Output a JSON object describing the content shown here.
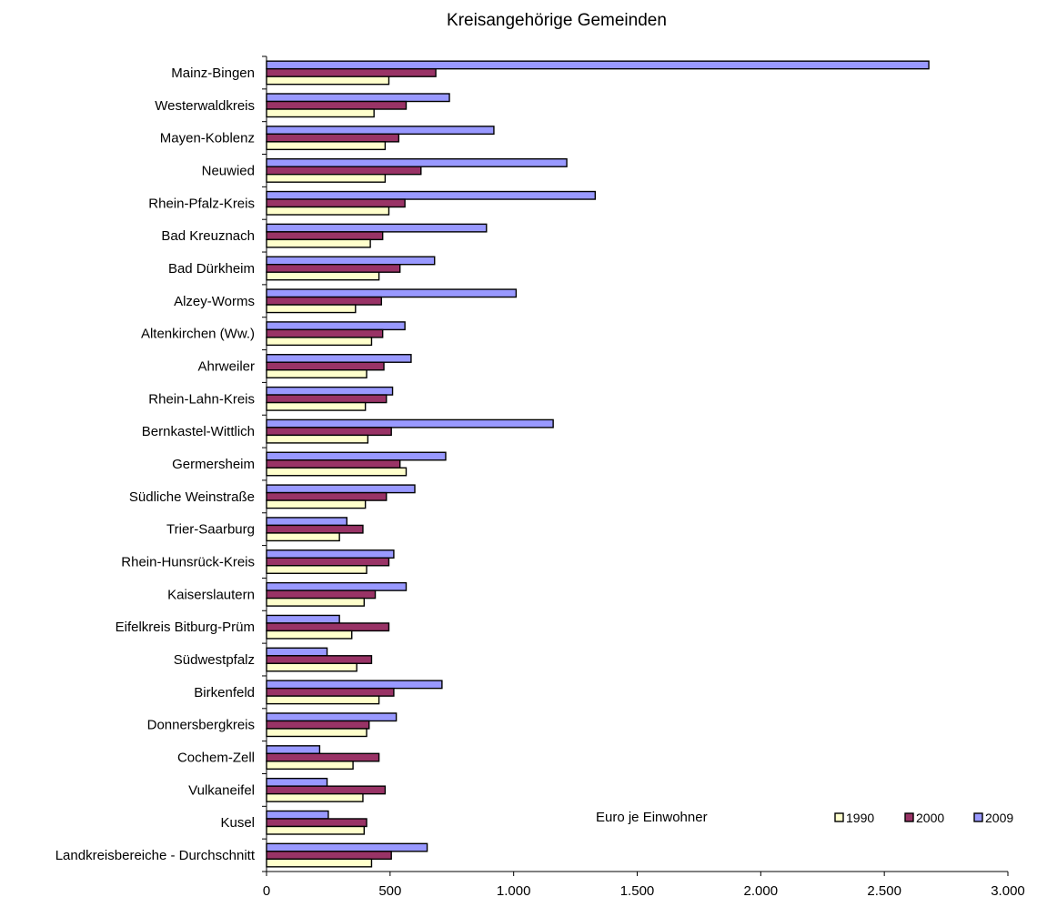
{
  "chart_data": {
    "type": "bar",
    "orientation": "horizontal",
    "title": "Kreisangehörige Gemeinden",
    "unit_label": "Euro je Einwohner",
    "categories": [
      "Mainz-Bingen",
      "Westerwaldkreis",
      "Mayen-Koblenz",
      "Neuwied",
      "Rhein-Pfalz-Kreis",
      "Bad Kreuznach",
      "Bad Dürkheim",
      "Alzey-Worms",
      "Altenkirchen (Ww.)",
      "Ahrweiler",
      "Rhein-Lahn-Kreis",
      "Bernkastel-Wittlich",
      "Germersheim",
      "Südliche Weinstraße",
      "Trier-Saarburg",
      "Rhein-Hunsrück-Kreis",
      "Kaiserslautern",
      "Eifelkreis Bitburg-Prüm",
      "Südwestpfalz",
      "Birkenfeld",
      "Donnersbergkreis",
      "Cochem-Zell",
      "Vulkaneifel",
      "Kusel",
      "Landkreisbereiche - Durchschnitt"
    ],
    "series": [
      {
        "name": "1990",
        "color": "#FFFFCC",
        "values": [
          495,
          435,
          480,
          480,
          495,
          420,
          455,
          360,
          425,
          405,
          400,
          410,
          565,
          400,
          295,
          405,
          395,
          345,
          365,
          455,
          405,
          350,
          390,
          395,
          425
        ]
      },
      {
        "name": "2000",
        "color": "#993366",
        "values": [
          685,
          565,
          535,
          625,
          560,
          470,
          540,
          465,
          470,
          475,
          485,
          505,
          540,
          485,
          390,
          495,
          440,
          495,
          425,
          515,
          415,
          455,
          480,
          405,
          505
        ]
      },
      {
        "name": "2009",
        "color": "#9999FF",
        "values": [
          2680,
          740,
          920,
          1215,
          1330,
          890,
          680,
          1010,
          560,
          585,
          510,
          1160,
          725,
          600,
          325,
          515,
          565,
          295,
          245,
          710,
          525,
          215,
          245,
          250,
          650
        ]
      }
    ],
    "xlim": [
      0,
      3000
    ],
    "xticks": [
      0,
      500,
      1000,
      1500,
      2000,
      2500,
      3000
    ],
    "xtick_labels": [
      "0",
      "500",
      "1.000",
      "1.500",
      "2.000",
      "2.500",
      "3.000"
    ],
    "grid": false,
    "legend_position": "bottom-right"
  }
}
